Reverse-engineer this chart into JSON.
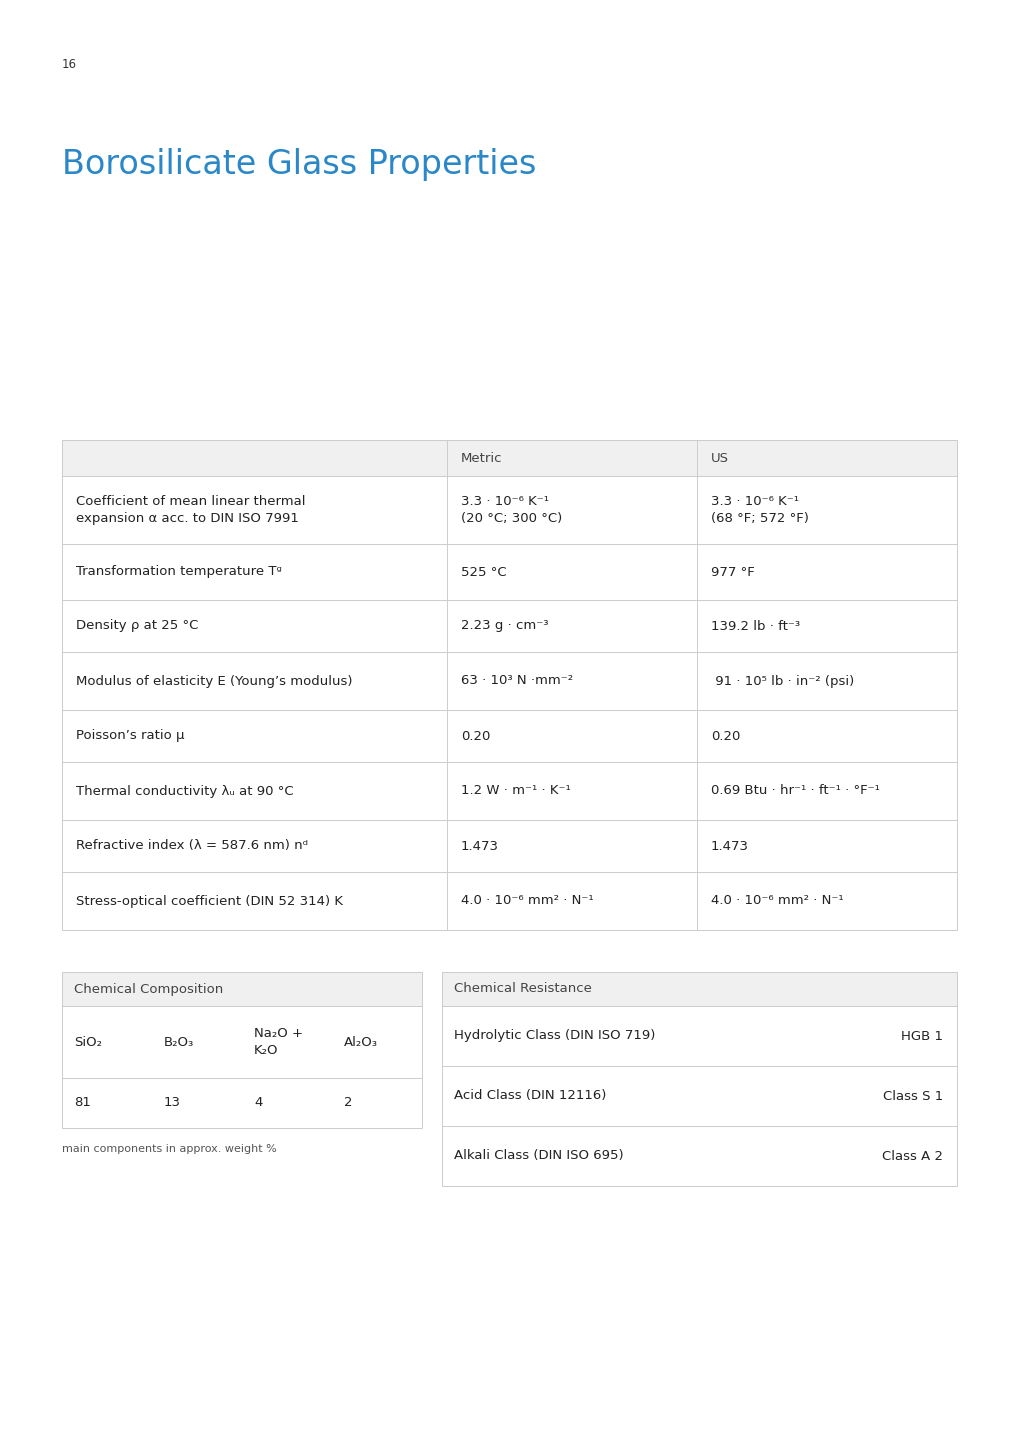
{
  "page_number": "16",
  "title": "Borosilicate Glass Properties",
  "title_color": "#2a87c8",
  "background_color": "#ffffff",
  "page_number_color": "#333333",
  "main_table": {
    "header_bg": "#f0f0f0",
    "border_color": "#cccccc",
    "headers": [
      "",
      "Metric",
      "US"
    ],
    "rows": [
      {
        "property": "Coefficient of mean linear thermal\nexpansion α acc. to DIN ISO 7991",
        "metric": "3.3 · 10⁻⁶ K⁻¹\n(20 °C; 300 °C)",
        "us": "3.3 · 10⁻⁶ K⁻¹\n(68 °F; 572 °F)"
      },
      {
        "property": "Transformation temperature Tᵍ",
        "metric": "525 °C",
        "us": "977 °F"
      },
      {
        "property": "Density ρ at 25 °C",
        "metric": "2.23 g · cm⁻³",
        "us": "139.2 lb · ft⁻³"
      },
      {
        "property": "Modulus of elasticity E (Young’s modulus)",
        "metric": "63 · 10³ N ·mm⁻²",
        "us": " 91 · 10⁵ lb · in⁻² (psi)"
      },
      {
        "property": "Poisson’s ratio μ",
        "metric": "0.20",
        "us": "0.20"
      },
      {
        "property": "Thermal conductivity λᵤ at 90 °C",
        "metric": "1.2 W · m⁻¹ · K⁻¹",
        "us": "0.69 Btu · hr⁻¹ · ft⁻¹ · °F⁻¹"
      },
      {
        "property": "Refractive index (λ = 587.6 nm) nᵈ",
        "metric": "1.473",
        "us": "1.473"
      },
      {
        "property": "Stress-optical coefficient (DIN 52 314) K",
        "metric": "4.0 · 10⁻⁶ mm² · N⁻¹",
        "us": "4.0 · 10⁻⁶ mm² · N⁻¹"
      }
    ]
  },
  "chem_comp": {
    "title": "Chemical Composition",
    "header_bg": "#f0f0f0",
    "border_color": "#cccccc",
    "col_headers": [
      "SiO₂",
      "B₂O₃",
      "Na₂O +\nK₂O",
      "Al₂O₃"
    ],
    "values": [
      "81",
      "13",
      "4",
      "2"
    ],
    "note": "main components in approx. weight %"
  },
  "chem_resist": {
    "title": "Chemical Resistance",
    "header_bg": "#f0f0f0",
    "border_color": "#cccccc",
    "rows": [
      {
        "label": "Hydrolytic Class (DIN ISO 719)",
        "value": "HGB 1"
      },
      {
        "label": "Acid Class (DIN 12116)",
        "value": "Class S 1"
      },
      {
        "label": "Alkali Class (DIN ISO 695)",
        "value": "Class A 2"
      }
    ]
  }
}
